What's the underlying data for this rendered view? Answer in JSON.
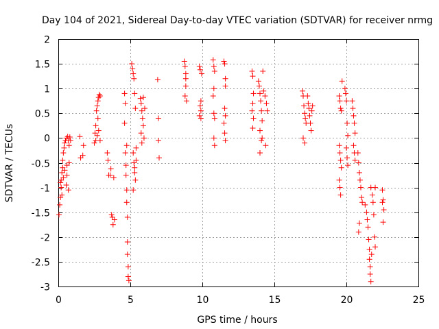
{
  "chart_data": {
    "type": "scatter",
    "title": "Day 104 of 2021, Sidereal Day-to-day VTEC variation (SDTVAR) for receiver nrmg",
    "xlabel": "GPS time / hours",
    "ylabel": "SDTVAR / TECUs",
    "xlim": [
      0,
      25
    ],
    "ylim": [
      -3,
      2
    ],
    "xticks": [
      "0",
      "5",
      "10",
      "15",
      "20",
      "25"
    ],
    "yticks": [
      "-3",
      "-2.5",
      "-2",
      "-1.5",
      "-1",
      "-0.5",
      "0",
      "0.5",
      "1",
      "1.5",
      "2"
    ],
    "grid": true,
    "marker": "+",
    "color": "#ff0000",
    "series": [
      {
        "name": "SDTVAR",
        "points": [
          [
            0.05,
            -1.55
          ],
          [
            0.1,
            -1.35
          ],
          [
            0.15,
            -1.2
          ],
          [
            0.2,
            -1.0
          ],
          [
            0.2,
            -0.85
          ],
          [
            0.25,
            -0.7
          ],
          [
            0.3,
            -0.6
          ],
          [
            0.3,
            -0.45
          ],
          [
            0.35,
            -0.3
          ],
          [
            0.4,
            -0.2
          ],
          [
            0.45,
            -0.1
          ],
          [
            0.5,
            -0.05
          ],
          [
            0.55,
            0.0
          ],
          [
            0.55,
            -0.95
          ],
          [
            0.6,
            -0.55
          ],
          [
            0.6,
            -0.75
          ],
          [
            0.65,
            0.03
          ],
          [
            0.7,
            -0.05
          ],
          [
            0.7,
            -1.05
          ],
          [
            0.75,
            -0.15
          ],
          [
            0.75,
            -0.5
          ],
          [
            0.8,
            0.02
          ],
          [
            0.85,
            -0.05
          ],
          [
            0.15,
            -0.9
          ],
          [
            0.25,
            -1.15
          ],
          [
            0.35,
            -0.8
          ],
          [
            0.45,
            -0.65
          ],
          [
            1.5,
            0.03
          ],
          [
            1.55,
            -0.4
          ],
          [
            1.7,
            -0.35
          ],
          [
            1.75,
            -0.15
          ],
          [
            2.5,
            -0.1
          ],
          [
            2.55,
            0.1
          ],
          [
            2.6,
            0.25
          ],
          [
            2.65,
            0.55
          ],
          [
            2.7,
            0.65
          ],
          [
            2.75,
            0.75
          ],
          [
            2.8,
            0.82
          ],
          [
            2.85,
            0.88
          ],
          [
            2.9,
            0.85
          ],
          [
            2.6,
            -0.05
          ],
          [
            2.7,
            0.05
          ],
          [
            2.8,
            0.15
          ],
          [
            2.9,
            -0.05
          ],
          [
            2.75,
            0.4
          ],
          [
            3.4,
            -0.3
          ],
          [
            3.45,
            -0.45
          ],
          [
            3.5,
            -0.75
          ],
          [
            3.6,
            -0.75
          ],
          [
            3.65,
            -0.62
          ],
          [
            3.7,
            -1.55
          ],
          [
            3.75,
            -1.6
          ],
          [
            3.8,
            -1.75
          ],
          [
            3.85,
            -0.8
          ],
          [
            3.9,
            -1.65
          ],
          [
            4.6,
            0.9
          ],
          [
            4.65,
            0.7
          ],
          [
            4.6,
            0.3
          ],
          [
            4.65,
            -0.3
          ],
          [
            4.7,
            -0.55
          ],
          [
            4.7,
            -0.75
          ],
          [
            4.75,
            -1.05
          ],
          [
            4.75,
            -1.3
          ],
          [
            4.8,
            -2.1
          ],
          [
            4.8,
            -2.35
          ],
          [
            4.85,
            -2.6
          ],
          [
            4.85,
            -2.8
          ],
          [
            4.9,
            -2.88
          ],
          [
            4.75,
            -0.15
          ],
          [
            4.8,
            -1.6
          ],
          [
            5.1,
            1.5
          ],
          [
            5.15,
            1.4
          ],
          [
            5.2,
            1.3
          ],
          [
            5.25,
            1.2
          ],
          [
            5.3,
            0.9
          ],
          [
            5.35,
            0.6
          ],
          [
            5.2,
            -0.3
          ],
          [
            5.25,
            -0.5
          ],
          [
            5.3,
            -0.7
          ],
          [
            5.35,
            -0.85
          ],
          [
            5.4,
            -0.45
          ],
          [
            5.2,
            -1.05
          ],
          [
            5.3,
            -0.6
          ],
          [
            5.4,
            -0.2
          ],
          [
            5.7,
            0.8
          ],
          [
            5.75,
            0.7
          ],
          [
            5.8,
            0.55
          ],
          [
            5.85,
            0.4
          ],
          [
            5.9,
            0.25
          ],
          [
            5.95,
            0.0
          ],
          [
            5.8,
            -0.1
          ],
          [
            5.9,
            0.82
          ],
          [
            6.0,
            0.6
          ],
          [
            5.75,
            0.1
          ],
          [
            6.9,
            1.18
          ],
          [
            6.95,
            0.4
          ],
          [
            6.95,
            -0.05
          ],
          [
            7.0,
            -0.4
          ],
          [
            8.75,
            1.55
          ],
          [
            8.8,
            1.45
          ],
          [
            8.85,
            1.3
          ],
          [
            8.85,
            1.05
          ],
          [
            8.8,
            0.85
          ],
          [
            8.9,
            0.75
          ],
          [
            8.85,
            1.2
          ],
          [
            9.8,
            1.45
          ],
          [
            9.85,
            1.38
          ],
          [
            9.9,
            0.75
          ],
          [
            9.85,
            0.65
          ],
          [
            9.9,
            0.55
          ],
          [
            9.8,
            0.45
          ],
          [
            9.9,
            0.4
          ],
          [
            9.95,
            1.3
          ],
          [
            10.75,
            1.58
          ],
          [
            10.8,
            1.45
          ],
          [
            10.85,
            1.35
          ],
          [
            10.8,
            1.0
          ],
          [
            10.75,
            0.85
          ],
          [
            10.8,
            0.5
          ],
          [
            10.85,
            0.4
          ],
          [
            10.8,
            0.0
          ],
          [
            10.85,
            -0.15
          ],
          [
            11.5,
            1.55
          ],
          [
            11.55,
            1.5
          ],
          [
            11.6,
            1.2
          ],
          [
            11.6,
            1.05
          ],
          [
            11.55,
            0.6
          ],
          [
            11.6,
            0.45
          ],
          [
            11.5,
            0.3
          ],
          [
            11.55,
            0.1
          ],
          [
            11.6,
            -0.05
          ],
          [
            13.45,
            1.35
          ],
          [
            13.5,
            1.25
          ],
          [
            13.55,
            0.9
          ],
          [
            13.5,
            0.7
          ],
          [
            13.45,
            0.55
          ],
          [
            13.55,
            0.4
          ],
          [
            13.5,
            0.2
          ],
          [
            13.9,
            1.15
          ],
          [
            13.95,
            1.05
          ],
          [
            14.0,
            0.9
          ],
          [
            14.05,
            0.75
          ],
          [
            14.1,
            0.55
          ],
          [
            14.15,
            0.35
          ],
          [
            14.0,
            0.15
          ],
          [
            14.1,
            -0.05
          ],
          [
            14.0,
            -0.3
          ],
          [
            14.15,
            0.0
          ],
          [
            14.2,
            1.35
          ],
          [
            14.25,
            0.95
          ],
          [
            14.35,
            0.85
          ],
          [
            14.45,
            0.7
          ],
          [
            14.5,
            0.55
          ],
          [
            14.4,
            -0.15
          ],
          [
            16.95,
            0.95
          ],
          [
            17.0,
            0.85
          ],
          [
            17.05,
            0.65
          ],
          [
            17.1,
            0.5
          ],
          [
            17.15,
            0.4
          ],
          [
            17.2,
            0.3
          ],
          [
            17.0,
            0.0
          ],
          [
            17.1,
            -0.1
          ],
          [
            17.3,
            0.85
          ],
          [
            17.35,
            0.7
          ],
          [
            17.4,
            0.6
          ],
          [
            17.45,
            0.45
          ],
          [
            17.5,
            0.3
          ],
          [
            17.55,
            0.15
          ],
          [
            17.6,
            0.55
          ],
          [
            17.65,
            0.65
          ],
          [
            19.5,
            0.85
          ],
          [
            19.55,
            0.75
          ],
          [
            19.6,
            0.6
          ],
          [
            19.65,
            0.55
          ],
          [
            19.7,
            1.15
          ],
          [
            19.5,
            -0.15
          ],
          [
            19.55,
            -0.3
          ],
          [
            19.6,
            -0.45
          ],
          [
            19.65,
            -0.6
          ],
          [
            19.5,
            -0.85
          ],
          [
            19.55,
            -1.0
          ],
          [
            19.6,
            -1.15
          ],
          [
            19.9,
            1.0
          ],
          [
            19.95,
            0.9
          ],
          [
            20.0,
            0.75
          ],
          [
            20.05,
            0.3
          ],
          [
            20.1,
            0.05
          ],
          [
            20.0,
            -0.2
          ],
          [
            20.05,
            -0.4
          ],
          [
            20.1,
            -0.55
          ],
          [
            20.4,
            0.75
          ],
          [
            20.45,
            0.6
          ],
          [
            20.5,
            0.45
          ],
          [
            20.55,
            0.3
          ],
          [
            20.6,
            0.1
          ],
          [
            20.5,
            -0.15
          ],
          [
            20.55,
            -0.3
          ],
          [
            20.6,
            -0.45
          ],
          [
            20.8,
            -0.3
          ],
          [
            20.85,
            -0.5
          ],
          [
            20.9,
            -0.7
          ],
          [
            20.95,
            -0.85
          ],
          [
            21.0,
            -1.0
          ],
          [
            21.05,
            -1.2
          ],
          [
            21.1,
            -1.3
          ],
          [
            20.9,
            -1.72
          ],
          [
            20.85,
            -1.9
          ],
          [
            21.3,
            -1.35
          ],
          [
            21.4,
            -1.5
          ],
          [
            21.45,
            -1.65
          ],
          [
            21.5,
            -1.8
          ],
          [
            21.55,
            -2.05
          ],
          [
            21.6,
            -2.25
          ],
          [
            21.6,
            -2.45
          ],
          [
            21.65,
            -2.6
          ],
          [
            21.65,
            -2.75
          ],
          [
            21.7,
            -2.9
          ],
          [
            21.7,
            -1.0
          ],
          [
            21.8,
            -1.15
          ],
          [
            21.85,
            -1.3
          ],
          [
            21.9,
            -1.55
          ],
          [
            21.95,
            -2.0
          ],
          [
            22.0,
            -2.2
          ],
          [
            22.0,
            -1.0
          ],
          [
            21.75,
            -2.35
          ],
          [
            22.5,
            -1.05
          ],
          [
            22.55,
            -1.25
          ],
          [
            22.6,
            -1.45
          ],
          [
            22.55,
            -1.7
          ],
          [
            22.5,
            -1.3
          ]
        ]
      }
    ]
  }
}
